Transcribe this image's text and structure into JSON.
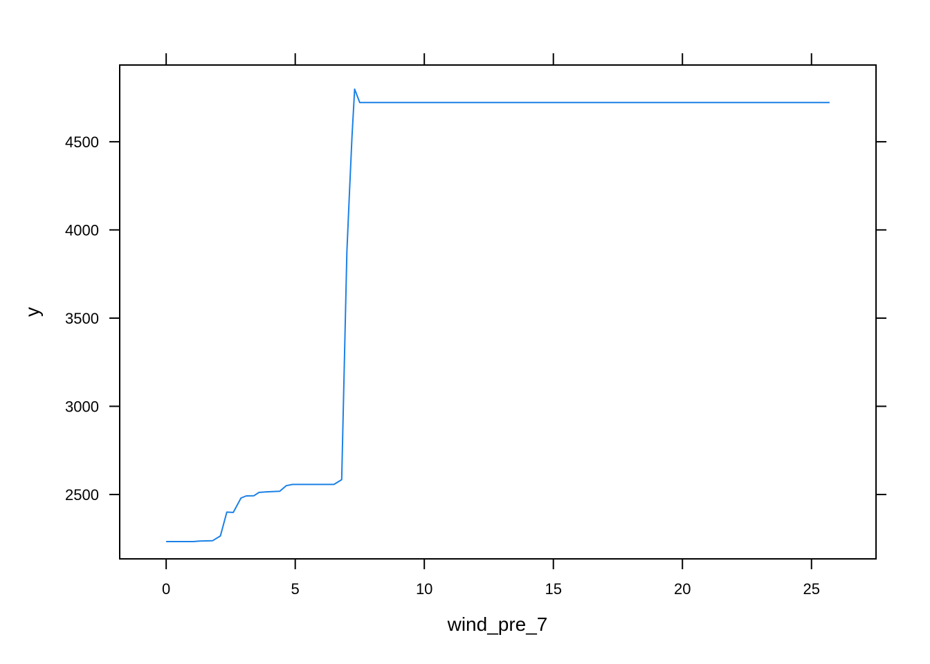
{
  "chart_data": {
    "type": "line",
    "title": "",
    "xlabel": "wind_pre_7",
    "ylabel": "y",
    "xlim": [
      -1.8,
      27.5
    ],
    "ylim": [
      2135,
      4935
    ],
    "xticks": [
      0,
      5,
      10,
      15,
      20,
      25
    ],
    "xtick_labels": [
      "0",
      "5",
      "10",
      "15",
      "20",
      "25"
    ],
    "yticks": [
      2500,
      3000,
      3500,
      4000,
      4500
    ],
    "ytick_labels": [
      "2500",
      "3000",
      "3500",
      "4000",
      "4500"
    ],
    "grid": false,
    "legend": "none",
    "series": [
      {
        "color": "#1a80e6",
        "x": [
          0.0,
          1.05,
          1.3,
          1.8,
          2.1,
          2.35,
          2.6,
          2.9,
          3.1,
          3.4,
          3.6,
          3.9,
          4.1,
          4.4,
          4.65,
          4.9,
          5.2,
          5.6,
          6.0,
          6.5,
          6.8,
          7.0,
          7.1,
          7.2,
          7.3,
          7.5,
          8.0,
          10.0,
          15.0,
          20.0,
          25.7
        ],
        "y": [
          2233,
          2233,
          2236,
          2238,
          2265,
          2400,
          2398,
          2480,
          2492,
          2493,
          2512,
          2515,
          2516,
          2518,
          2550,
          2557,
          2557,
          2557,
          2557,
          2557,
          2584,
          3875,
          4210,
          4530,
          4798,
          4722,
          4722,
          4722,
          4722,
          4722,
          4722
        ]
      }
    ]
  }
}
